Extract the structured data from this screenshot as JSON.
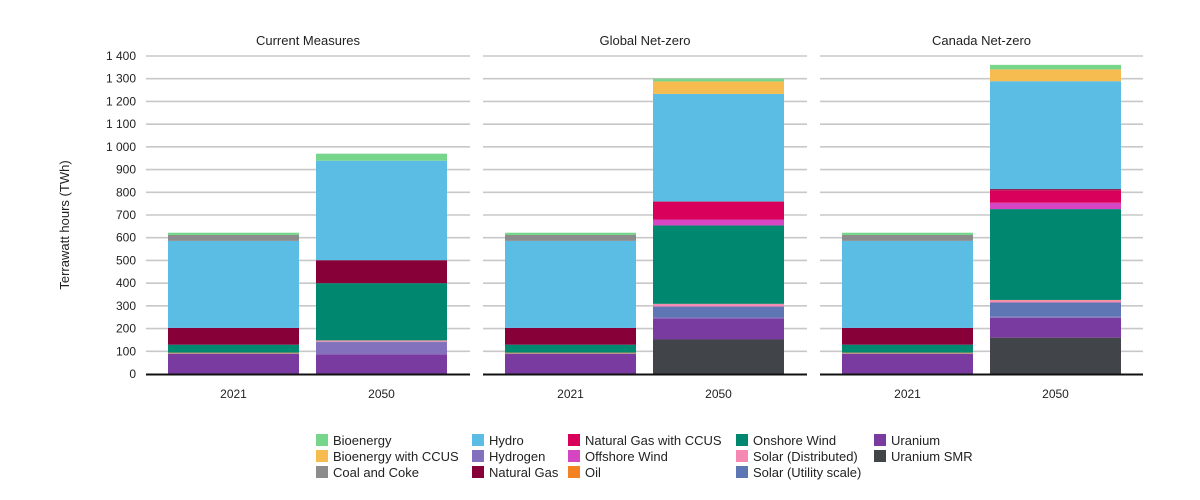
{
  "chart_data": {
    "type": "bar",
    "stacked": true,
    "ylabel": "Terrawatt hours (TWh)",
    "ylim": [
      0,
      1400
    ],
    "y_ticks": [
      "0",
      "100",
      "200",
      "300",
      "400",
      "500",
      "600",
      "700",
      "800",
      "900",
      "1 000",
      "1 100",
      "1 200",
      "1 300",
      "1 400"
    ],
    "grid": true,
    "legend_position": "bottom",
    "categories": [
      "2021",
      "2050"
    ],
    "sources": [
      "Bioenergy",
      "Bioenergy with CCUS",
      "Coal and Coke",
      "Hydro",
      "Hydrogen",
      "Natural Gas",
      "Natural Gas with CCUS",
      "Offshore Wind",
      "Oil",
      "Onshore Wind",
      "Solar (Distributed)",
      "Solar (Utility scale)",
      "Uranium",
      "Uranium SMR"
    ],
    "colors": {
      "Bioenergy": "#77d68c",
      "Bioenergy with CCUS": "#f7bc4f",
      "Coal and Coke": "#8c8c8c",
      "Hydro": "#5bbce4",
      "Hydrogen": "#8471bd",
      "Natural Gas": "#870038",
      "Natural Gas with CCUS": "#d9005b",
      "Offshore Wind": "#d645c2",
      "Oil": "#f58220",
      "Onshore Wind": "#008770",
      "Solar (Distributed)": "#f48ab4",
      "Solar (Utility scale)": "#5f76b4",
      "Uranium": "#793ba0",
      "Uranium SMR": "#414448"
    },
    "panels": [
      {
        "title": "Current Measures",
        "series": [
          {
            "name": "Uranium SMR",
            "values": [
              0,
              0
            ]
          },
          {
            "name": "Uranium",
            "values": [
              88,
              87
            ]
          },
          {
            "name": "Hydrogen",
            "values": [
              0,
              52
            ]
          },
          {
            "name": "Solar (Utility scale)",
            "values": [
              2,
              3
            ]
          },
          {
            "name": "Solar (Distributed)",
            "values": [
              1,
              5
            ]
          },
          {
            "name": "Oil",
            "values": [
              3,
              1
            ]
          },
          {
            "name": "Onshore Wind",
            "values": [
              35,
              252
            ]
          },
          {
            "name": "Offshore Wind",
            "values": [
              0,
              0
            ]
          },
          {
            "name": "Natural Gas with CCUS",
            "values": [
              0,
              0
            ]
          },
          {
            "name": "Natural Gas",
            "values": [
              74,
              101
            ]
          },
          {
            "name": "Hydro",
            "values": [
              383,
              438
            ]
          },
          {
            "name": "Coal and Coke",
            "values": [
              26,
              0
            ]
          },
          {
            "name": "Bioenergy with CCUS",
            "values": [
              0,
              0
            ]
          },
          {
            "name": "Bioenergy",
            "values": [
              10,
              31
            ]
          }
        ]
      },
      {
        "title": "Global Net-zero",
        "series": [
          {
            "name": "Uranium SMR",
            "values": [
              0,
              152
            ]
          },
          {
            "name": "Uranium",
            "values": [
              88,
              92
            ]
          },
          {
            "name": "Hydrogen",
            "values": [
              0,
              5
            ]
          },
          {
            "name": "Solar (Utility scale)",
            "values": [
              2,
              48
            ]
          },
          {
            "name": "Solar (Distributed)",
            "values": [
              1,
              11
            ]
          },
          {
            "name": "Oil",
            "values": [
              3,
              1
            ]
          },
          {
            "name": "Onshore Wind",
            "values": [
              35,
              345
            ]
          },
          {
            "name": "Offshore Wind",
            "values": [
              0,
              26
            ]
          },
          {
            "name": "Natural Gas with CCUS",
            "values": [
              0,
              78
            ]
          },
          {
            "name": "Natural Gas",
            "values": [
              74,
              2
            ]
          },
          {
            "name": "Hydro",
            "values": [
              383,
              473
            ]
          },
          {
            "name": "Coal and Coke",
            "values": [
              26,
              0
            ]
          },
          {
            "name": "Bioenergy with CCUS",
            "values": [
              0,
              55
            ]
          },
          {
            "name": "Bioenergy",
            "values": [
              10,
              12
            ]
          }
        ]
      },
      {
        "title": "Canada Net-zero",
        "series": [
          {
            "name": "Uranium SMR",
            "values": [
              0,
              160
            ]
          },
          {
            "name": "Uranium",
            "values": [
              88,
              87
            ]
          },
          {
            "name": "Hydrogen",
            "values": [
              0,
              5
            ]
          },
          {
            "name": "Solar (Utility scale)",
            "values": [
              2,
              63
            ]
          },
          {
            "name": "Solar (Distributed)",
            "values": [
              1,
              10
            ]
          },
          {
            "name": "Oil",
            "values": [
              3,
              1
            ]
          },
          {
            "name": "Onshore Wind",
            "values": [
              35,
              400
            ]
          },
          {
            "name": "Offshore Wind",
            "values": [
              0,
              28
            ]
          },
          {
            "name": "Natural Gas with CCUS",
            "values": [
              0,
              55
            ]
          },
          {
            "name": "Natural Gas",
            "values": [
              74,
              5
            ]
          },
          {
            "name": "Hydro",
            "values": [
              383,
              475
            ]
          },
          {
            "name": "Coal and Coke",
            "values": [
              26,
              0
            ]
          },
          {
            "name": "Bioenergy with CCUS",
            "values": [
              0,
              52
            ]
          },
          {
            "name": "Bioenergy",
            "values": [
              10,
              20
            ]
          }
        ]
      }
    ]
  },
  "legend": {
    "columns": [
      [
        "Bioenergy",
        "Bioenergy with CCUS",
        "Coal and Coke"
      ],
      [
        "Hydro",
        "Hydrogen",
        "Natural Gas"
      ],
      [
        "Natural Gas with CCUS",
        "Offshore Wind",
        "Oil"
      ],
      [
        "Onshore Wind",
        "Solar (Distributed)",
        "Solar (Utility scale)"
      ],
      [
        "Uranium",
        "Uranium SMR"
      ]
    ]
  }
}
